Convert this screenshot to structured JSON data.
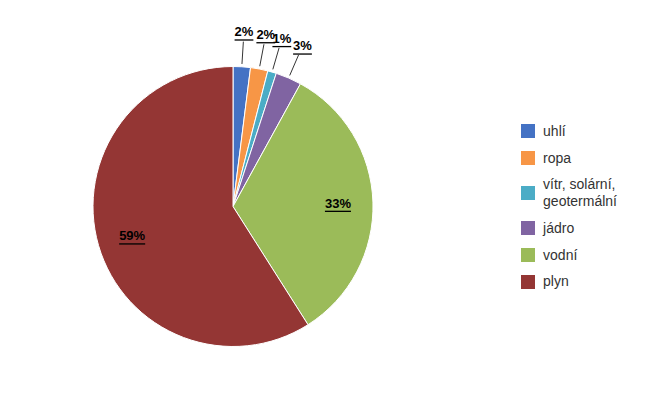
{
  "chart_data": {
    "type": "pie",
    "categories": [
      "uhlí",
      "ropa",
      "vítr, solární,\ngeotermální",
      "jádro",
      "vodní",
      "plyn"
    ],
    "values": [
      2,
      2,
      1,
      3,
      33,
      59
    ],
    "value_labels": [
      "2%",
      "2%",
      "1%",
      "3%",
      "33%",
      "59%"
    ],
    "colors": [
      "#4472C4",
      "#F79646",
      "#4BACC6",
      "#8064A2",
      "#9BBB59",
      "#943634"
    ],
    "data_labels": true,
    "legend": "right"
  }
}
